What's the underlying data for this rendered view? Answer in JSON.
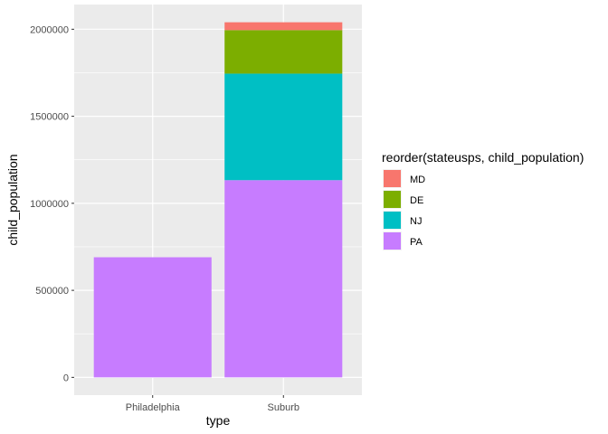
{
  "chart_data": {
    "type": "bar",
    "stacked": true,
    "categories": [
      "Philadelphia",
      "Suburb"
    ],
    "series": [
      {
        "name": "PA",
        "color": "#C77CFF",
        "values": [
          690000,
          1133000
        ]
      },
      {
        "name": "NJ",
        "color": "#00BFC4",
        "values": [
          0,
          612000
        ]
      },
      {
        "name": "DE",
        "color": "#7CAE00",
        "values": [
          0,
          250000
        ]
      },
      {
        "name": "MD",
        "color": "#F8766D",
        "values": [
          0,
          45000
        ]
      }
    ],
    "xlabel": "type",
    "ylabel": "child_population",
    "ylim": [
      -102000,
      2142000
    ],
    "yticks": [
      0,
      500000,
      1000000,
      1500000,
      2000000
    ],
    "ytick_labels": [
      "0",
      "500000",
      "1000000",
      "1500000",
      "2000000"
    ],
    "grid": true,
    "legend": {
      "title": "reorder(stateusps, child_population)",
      "placement": "right",
      "entries": [
        "MD",
        "DE",
        "NJ",
        "PA"
      ]
    },
    "panel_background": "#EBEBEB"
  }
}
